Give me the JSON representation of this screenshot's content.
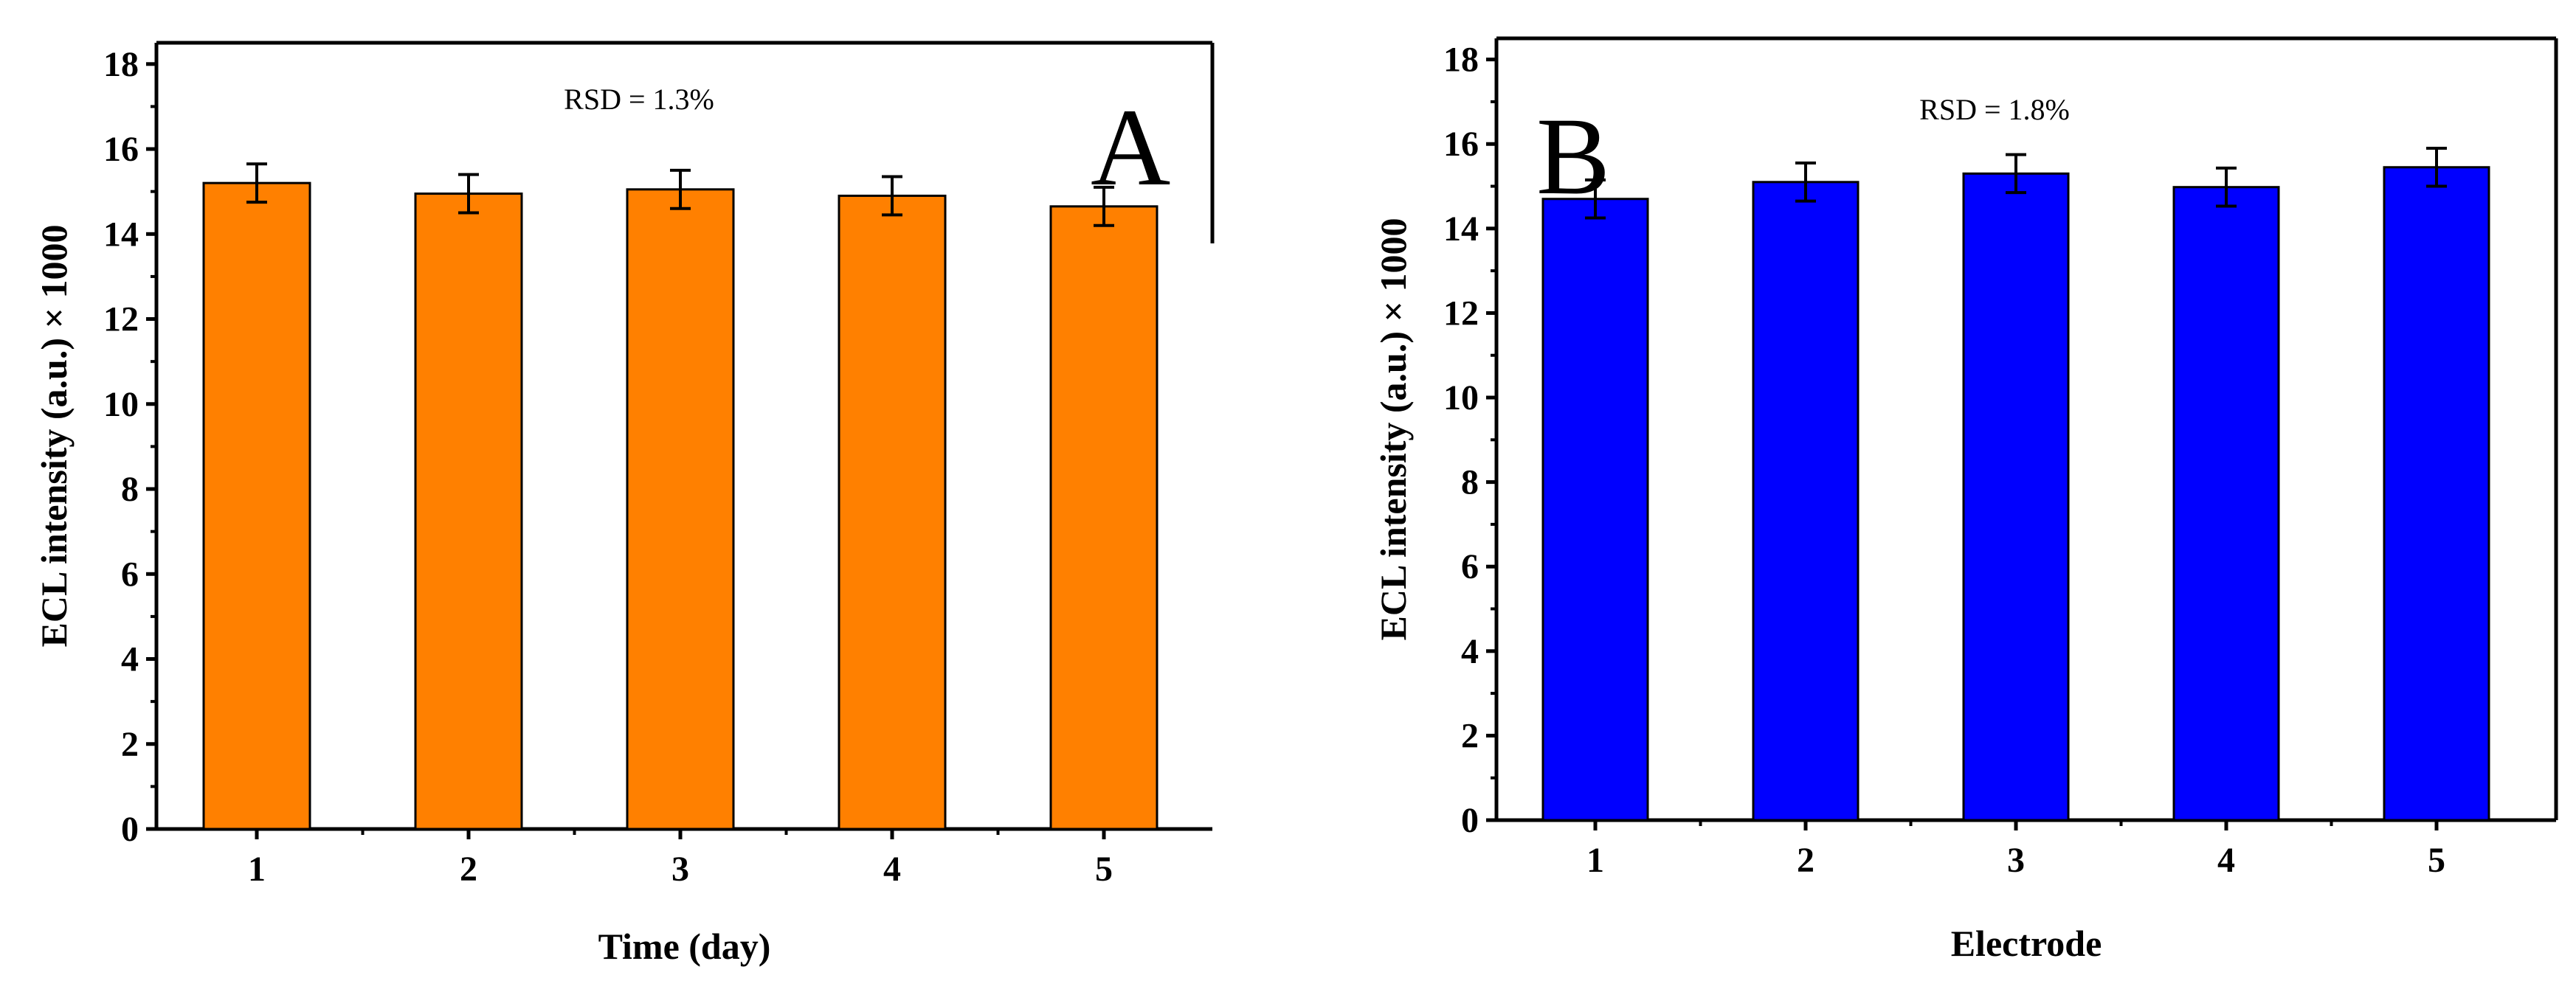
{
  "chart_data": [
    {
      "type": "bar",
      "panel_label": "A",
      "categories": [
        "1",
        "2",
        "3",
        "4",
        "5"
      ],
      "values": [
        15.2,
        14.95,
        15.05,
        14.9,
        14.65
      ],
      "errors": [
        0.45,
        0.45,
        0.45,
        0.45,
        0.45
      ],
      "xlabel": "Time (day)",
      "ylabel": "ECL intensity (a.u.) × 1000",
      "ylim": [
        0,
        18.5
      ],
      "yticks": [
        "0",
        "2",
        "4",
        "6",
        "8",
        "10",
        "12",
        "14",
        "16",
        "18"
      ],
      "annotation": "RSD = 1.3%",
      "bar_color": "#ff8000"
    },
    {
      "type": "bar",
      "panel_label": "B",
      "categories": [
        "1",
        "2",
        "3",
        "4",
        "5"
      ],
      "values": [
        14.7,
        15.1,
        15.3,
        14.98,
        15.45
      ],
      "errors": [
        0.45,
        0.45,
        0.45,
        0.45,
        0.45
      ],
      "xlabel": "Electrode",
      "ylabel": "ECL intensity (a.u.) × 1000",
      "ylim": [
        0,
        18.5
      ],
      "yticks": [
        "0",
        "2",
        "4",
        "6",
        "8",
        "10",
        "12",
        "14",
        "16",
        "18"
      ],
      "annotation": "RSD = 1.8%",
      "bar_color": "#0000ff"
    }
  ]
}
